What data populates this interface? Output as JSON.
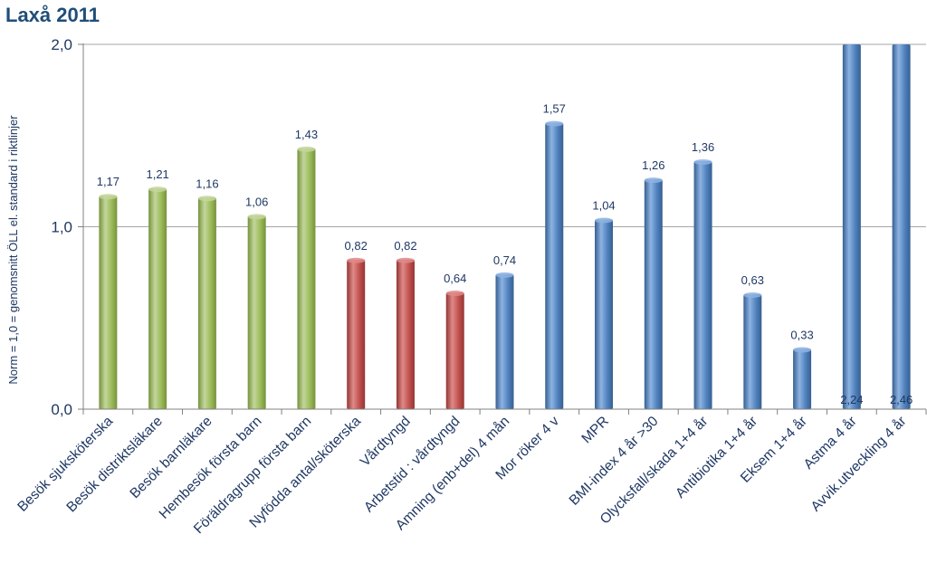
{
  "chart_data": {
    "type": "bar",
    "title": "Laxå 2011",
    "ylabel": "Norm = 1,0 = genomsnitt ÖLL el. standard i riktlinjer",
    "xlabel": "",
    "ylim": [
      0,
      2.0
    ],
    "yticks": [
      "0,0",
      "1,0",
      "2,0"
    ],
    "ytick_values": [
      0,
      1.0,
      2.0
    ],
    "grid": true,
    "legend": "none",
    "categories": [
      "Besök sjuksköterska",
      "Besök distriktsläkare",
      "Besök barnläkare",
      "Hembesök första barn",
      "Föräldragrupp första barn",
      "Nyfödda antal/sköterska",
      "Vårdtyngd",
      "Arbetstid : vårdtyngd",
      "Amning (enb+del) 4 mån",
      "Mor röker 4 v",
      "MPR",
      "BMI-index 4 år >30",
      "Olycksfall/skada 1+4 år",
      "Antibiotika 1+4 år",
      "Eksem 1+4 år",
      "Astma 4 år",
      "Avvik.utveckling 4 år"
    ],
    "values": [
      1.17,
      1.21,
      1.16,
      1.06,
      1.43,
      0.82,
      0.82,
      0.64,
      0.74,
      1.57,
      1.04,
      1.26,
      1.36,
      0.63,
      0.33,
      2.24,
      2.46
    ],
    "data_labels": [
      "1,17",
      "1,21",
      "1,16",
      "1,06",
      "1,43",
      "0,82",
      "0,82",
      "0,64",
      "0,74",
      "1,57",
      "1,04",
      "1,26",
      "1,36",
      "0,63",
      "0,33",
      "2,24",
      "2,46"
    ],
    "groups": [
      "green",
      "green",
      "green",
      "green",
      "green",
      "red",
      "red",
      "red",
      "blue",
      "blue",
      "blue",
      "blue",
      "blue",
      "blue",
      "blue",
      "blue",
      "blue"
    ],
    "colors": {
      "green": "#9bbb59",
      "green_light": "#c3d69b",
      "green_dark": "#76923c",
      "red": "#c0504d",
      "red_light": "#df8a88",
      "red_dark": "#943634",
      "blue": "#4f81bd",
      "blue_light": "#8db3e2",
      "blue_dark": "#365f91",
      "text": "#1f3864",
      "title": "#1f4e79",
      "grid": "#a6a6a6"
    }
  }
}
